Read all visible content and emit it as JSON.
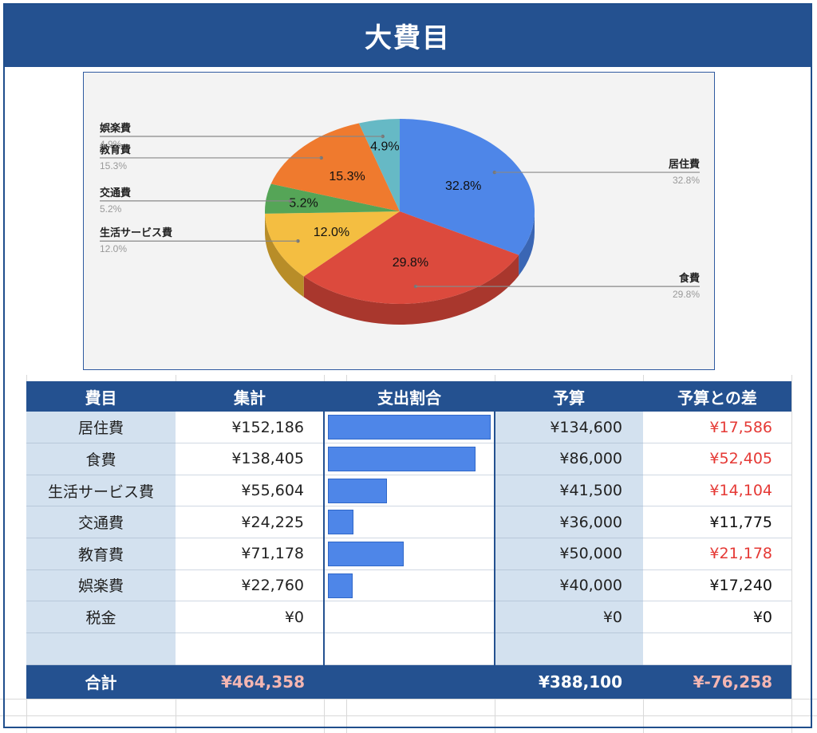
{
  "title": "大費目",
  "chart_data": {
    "type": "pie",
    "slices": [
      {
        "label": "居住費",
        "percent": "32.8%",
        "value": 32.8,
        "color": "#4e86e8",
        "side": "#3a66b4"
      },
      {
        "label": "食費",
        "percent": "29.8%",
        "value": 29.8,
        "color": "#dc4a3d",
        "side": "#a9372d"
      },
      {
        "label": "生活サービス費",
        "percent": "12.0%",
        "value": 12.0,
        "color": "#f4be41",
        "side": "#b88d28"
      },
      {
        "label": "交通費",
        "percent": "5.2%",
        "value": 5.2,
        "color": "#55a557",
        "side": "#3d7a40"
      },
      {
        "label": "教育費",
        "percent": "15.3%",
        "value": 15.3,
        "color": "#ef7a2e",
        "side": "#b35a21"
      },
      {
        "label": "娯楽費",
        "percent": "4.9%",
        "value": 4.9,
        "color": "#66b9c5",
        "side": "#4a8a93"
      }
    ]
  },
  "table": {
    "headers": [
      "費目",
      "集計",
      "支出割合",
      "予算",
      "予算との差"
    ],
    "rows": [
      {
        "name": "居住費",
        "total": "¥152,186",
        "share": 1.0,
        "budget": "¥134,600",
        "diff": "¥17,586",
        "over": true
      },
      {
        "name": "食費",
        "total": "¥138,405",
        "share": 0.909,
        "budget": "¥86,000",
        "diff": "¥52,405",
        "over": true
      },
      {
        "name": "生活サービス費",
        "total": "¥55,604",
        "share": 0.365,
        "budget": "¥41,500",
        "diff": "¥14,104",
        "over": true
      },
      {
        "name": "交通費",
        "total": "¥24,225",
        "share": 0.159,
        "budget": "¥36,000",
        "diff": "¥11,775",
        "over": false
      },
      {
        "name": "教育費",
        "total": "¥71,178",
        "share": 0.468,
        "budget": "¥50,000",
        "diff": "¥21,178",
        "over": true
      },
      {
        "name": "娯楽費",
        "total": "¥22,760",
        "share": 0.15,
        "budget": "¥40,000",
        "diff": "¥17,240",
        "over": false
      },
      {
        "name": "税金",
        "total": "¥0",
        "share": 0,
        "budget": "¥0",
        "diff": "¥0",
        "over": false
      },
      {
        "name": "",
        "total": "",
        "share": 0,
        "budget": "",
        "diff": "",
        "over": false
      }
    ],
    "footer": {
      "label": "合計",
      "total": "¥464,358",
      "budget": "¥388,100",
      "diff": "¥-76,258"
    }
  }
}
